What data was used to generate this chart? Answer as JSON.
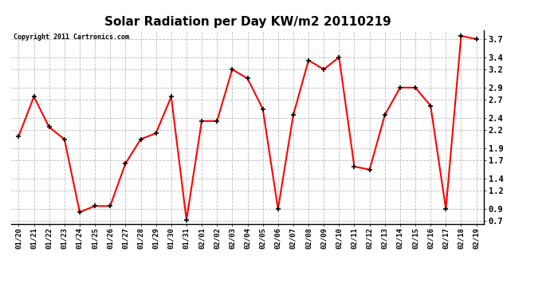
{
  "title": "Solar Radiation per Day KW/m2 20110219",
  "copyright": "Copyright 2011 Cartronics.com",
  "dates": [
    "01/20",
    "01/21",
    "01/22",
    "01/23",
    "01/24",
    "01/25",
    "01/26",
    "01/27",
    "01/28",
    "01/29",
    "01/30",
    "01/31",
    "02/01",
    "02/02",
    "02/03",
    "02/04",
    "02/05",
    "02/06",
    "02/07",
    "02/08",
    "02/09",
    "02/10",
    "02/11",
    "02/12",
    "02/13",
    "02/14",
    "02/15",
    "02/16",
    "02/17",
    "02/18",
    "02/19"
  ],
  "values": [
    2.1,
    2.75,
    2.25,
    2.05,
    0.85,
    0.95,
    0.95,
    1.65,
    2.05,
    2.15,
    2.75,
    0.72,
    2.35,
    2.35,
    3.2,
    3.05,
    2.55,
    0.9,
    2.45,
    3.35,
    3.2,
    3.4,
    1.6,
    1.55,
    2.45,
    2.9,
    2.9,
    2.6,
    0.9,
    3.75,
    3.7
  ],
  "line_color": "#ff0000",
  "marker_color": "#000000",
  "bg_color": "#ffffff",
  "grid_color": "#bbbbbb",
  "ylim": [
    0.65,
    3.85
  ],
  "yticks": [
    0.7,
    0.9,
    1.2,
    1.4,
    1.7,
    1.9,
    2.2,
    2.4,
    2.7,
    2.9,
    3.2,
    3.4,
    3.7
  ],
  "ytick_labels": [
    "0.7",
    "0.9",
    "1.2",
    "1.4",
    "1.7",
    "1.9",
    "2.2",
    "2.4",
    "2.7",
    "2.9",
    "3.2",
    "3.4",
    "3.7"
  ],
  "title_fontsize": 11,
  "copyright_fontsize": 6,
  "tick_fontsize": 7.5,
  "xtick_fontsize": 6.5
}
